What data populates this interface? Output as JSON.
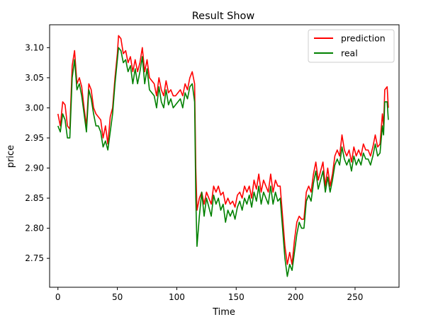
{
  "chart_data": {
    "type": "line",
    "title": "Result Show",
    "xlabel": "Time",
    "ylabel": "price",
    "xlim": [
      -7,
      287
    ],
    "ylim": [
      2.702,
      3.138
    ],
    "xticks": [
      0,
      50,
      100,
      150,
      200,
      250
    ],
    "yticks": [
      2.75,
      2.8,
      2.85,
      2.9,
      2.95,
      3.0,
      3.05,
      3.1
    ],
    "ytick_labels": [
      "2.75",
      "2.80",
      "2.85",
      "2.90",
      "2.95",
      "3.00",
      "3.05",
      "3.10"
    ],
    "grid": false,
    "legend_position": "upper-right",
    "series": [
      {
        "name": "prediction",
        "color": "#ff0000",
        "points": [
          [
            0,
            2.99
          ],
          [
            2,
            2.97
          ],
          [
            4,
            3.01
          ],
          [
            6,
            3.005
          ],
          [
            8,
            2.97
          ],
          [
            10,
            2.965
          ],
          [
            12,
            3.07
          ],
          [
            14,
            3.095
          ],
          [
            16,
            3.04
          ],
          [
            18,
            3.05
          ],
          [
            20,
            3.035
          ],
          [
            22,
            3.0
          ],
          [
            24,
            2.97
          ],
          [
            26,
            3.04
          ],
          [
            28,
            3.03
          ],
          [
            30,
            3.0
          ],
          [
            32,
            2.99
          ],
          [
            34,
            2.985
          ],
          [
            36,
            2.98
          ],
          [
            38,
            2.95
          ],
          [
            40,
            2.97
          ],
          [
            42,
            2.94
          ],
          [
            44,
            2.985
          ],
          [
            46,
            3.0
          ],
          [
            48,
            3.05
          ],
          [
            50,
            3.09
          ],
          [
            51,
            3.12
          ],
          [
            53,
            3.115
          ],
          [
            55,
            3.09
          ],
          [
            57,
            3.095
          ],
          [
            59,
            3.075
          ],
          [
            61,
            3.085
          ],
          [
            63,
            3.06
          ],
          [
            65,
            3.08
          ],
          [
            67,
            3.06
          ],
          [
            69,
            3.075
          ],
          [
            71,
            3.1
          ],
          [
            73,
            3.06
          ],
          [
            75,
            3.08
          ],
          [
            77,
            3.05
          ],
          [
            79,
            3.045
          ],
          [
            81,
            3.04
          ],
          [
            83,
            3.02
          ],
          [
            85,
            3.05
          ],
          [
            87,
            3.03
          ],
          [
            89,
            3.02
          ],
          [
            91,
            3.045
          ],
          [
            93,
            3.025
          ],
          [
            95,
            3.03
          ],
          [
            97,
            3.02
          ],
          [
            99,
            3.02
          ],
          [
            101,
            3.025
          ],
          [
            103,
            3.03
          ],
          [
            105,
            3.02
          ],
          [
            107,
            3.04
          ],
          [
            109,
            3.03
          ],
          [
            111,
            3.05
          ],
          [
            113,
            3.06
          ],
          [
            115,
            3.04
          ],
          [
            116,
            2.9
          ],
          [
            117,
            2.83
          ],
          [
            119,
            2.85
          ],
          [
            121,
            2.86
          ],
          [
            123,
            2.84
          ],
          [
            125,
            2.86
          ],
          [
            127,
            2.85
          ],
          [
            129,
            2.84
          ],
          [
            131,
            2.87
          ],
          [
            133,
            2.86
          ],
          [
            135,
            2.87
          ],
          [
            137,
            2.855
          ],
          [
            139,
            2.86
          ],
          [
            141,
            2.84
          ],
          [
            143,
            2.85
          ],
          [
            145,
            2.84
          ],
          [
            147,
            2.845
          ],
          [
            149,
            2.835
          ],
          [
            151,
            2.855
          ],
          [
            153,
            2.86
          ],
          [
            155,
            2.85
          ],
          [
            157,
            2.87
          ],
          [
            159,
            2.86
          ],
          [
            161,
            2.87
          ],
          [
            163,
            2.85
          ],
          [
            165,
            2.88
          ],
          [
            167,
            2.865
          ],
          [
            169,
            2.89
          ],
          [
            171,
            2.86
          ],
          [
            173,
            2.88
          ],
          [
            175,
            2.87
          ],
          [
            177,
            2.86
          ],
          [
            179,
            2.89
          ],
          [
            181,
            2.86
          ],
          [
            183,
            2.88
          ],
          [
            185,
            2.87
          ],
          [
            187,
            2.87
          ],
          [
            189,
            2.82
          ],
          [
            191,
            2.77
          ],
          [
            193,
            2.74
          ],
          [
            195,
            2.76
          ],
          [
            197,
            2.74
          ],
          [
            199,
            2.78
          ],
          [
            201,
            2.81
          ],
          [
            203,
            2.82
          ],
          [
            205,
            2.815
          ],
          [
            207,
            2.815
          ],
          [
            209,
            2.86
          ],
          [
            211,
            2.87
          ],
          [
            213,
            2.86
          ],
          [
            215,
            2.89
          ],
          [
            217,
            2.91
          ],
          [
            219,
            2.88
          ],
          [
            221,
            2.895
          ],
          [
            223,
            2.91
          ],
          [
            225,
            2.87
          ],
          [
            227,
            2.9
          ],
          [
            229,
            2.87
          ],
          [
            231,
            2.89
          ],
          [
            233,
            2.92
          ],
          [
            235,
            2.93
          ],
          [
            237,
            2.92
          ],
          [
            239,
            2.955
          ],
          [
            241,
            2.93
          ],
          [
            243,
            2.92
          ],
          [
            245,
            2.93
          ],
          [
            247,
            2.91
          ],
          [
            249,
            2.935
          ],
          [
            251,
            2.92
          ],
          [
            253,
            2.93
          ],
          [
            255,
            2.92
          ],
          [
            257,
            2.94
          ],
          [
            259,
            2.93
          ],
          [
            261,
            2.93
          ],
          [
            263,
            2.92
          ],
          [
            265,
            2.935
          ],
          [
            267,
            2.955
          ],
          [
            269,
            2.935
          ],
          [
            271,
            2.94
          ],
          [
            273,
            2.99
          ],
          [
            274,
            2.97
          ],
          [
            275,
            3.03
          ],
          [
            277,
            3.035
          ],
          [
            278,
            3.0
          ]
        ]
      },
      {
        "name": "real",
        "color": "#008000",
        "points": [
          [
            0,
            2.97
          ],
          [
            2,
            2.96
          ],
          [
            4,
            2.99
          ],
          [
            6,
            2.98
          ],
          [
            8,
            2.95
          ],
          [
            10,
            2.95
          ],
          [
            12,
            3.05
          ],
          [
            14,
            3.08
          ],
          [
            16,
            3.03
          ],
          [
            18,
            3.04
          ],
          [
            20,
            3.02
          ],
          [
            22,
            2.99
          ],
          [
            24,
            2.96
          ],
          [
            26,
            3.03
          ],
          [
            28,
            3.015
          ],
          [
            30,
            2.99
          ],
          [
            32,
            2.97
          ],
          [
            34,
            2.97
          ],
          [
            36,
            2.96
          ],
          [
            38,
            2.935
          ],
          [
            40,
            2.945
          ],
          [
            42,
            2.93
          ],
          [
            44,
            2.96
          ],
          [
            46,
            2.99
          ],
          [
            48,
            3.04
          ],
          [
            50,
            3.08
          ],
          [
            51,
            3.1
          ],
          [
            53,
            3.095
          ],
          [
            55,
            3.075
          ],
          [
            57,
            3.08
          ],
          [
            59,
            3.06
          ],
          [
            61,
            3.07
          ],
          [
            63,
            3.04
          ],
          [
            65,
            3.065
          ],
          [
            67,
            3.04
          ],
          [
            69,
            3.06
          ],
          [
            71,
            3.085
          ],
          [
            73,
            3.04
          ],
          [
            75,
            3.065
          ],
          [
            77,
            3.03
          ],
          [
            79,
            3.025
          ],
          [
            81,
            3.02
          ],
          [
            83,
            3.0
          ],
          [
            85,
            3.035
          ],
          [
            87,
            3.01
          ],
          [
            89,
            3.0
          ],
          [
            91,
            3.03
          ],
          [
            93,
            3.005
          ],
          [
            95,
            3.015
          ],
          [
            97,
            3.0
          ],
          [
            99,
            3.005
          ],
          [
            101,
            3.01
          ],
          [
            103,
            3.015
          ],
          [
            105,
            3.0
          ],
          [
            107,
            3.025
          ],
          [
            109,
            3.015
          ],
          [
            111,
            3.035
          ],
          [
            113,
            3.04
          ],
          [
            115,
            3.01
          ],
          [
            116,
            2.85
          ],
          [
            117,
            2.77
          ],
          [
            119,
            2.82
          ],
          [
            121,
            2.86
          ],
          [
            123,
            2.82
          ],
          [
            125,
            2.85
          ],
          [
            127,
            2.835
          ],
          [
            129,
            2.82
          ],
          [
            131,
            2.855
          ],
          [
            133,
            2.84
          ],
          [
            135,
            2.85
          ],
          [
            137,
            2.83
          ],
          [
            139,
            2.84
          ],
          [
            141,
            2.81
          ],
          [
            143,
            2.83
          ],
          [
            145,
            2.82
          ],
          [
            147,
            2.83
          ],
          [
            149,
            2.815
          ],
          [
            151,
            2.835
          ],
          [
            153,
            2.845
          ],
          [
            155,
            2.83
          ],
          [
            157,
            2.85
          ],
          [
            159,
            2.84
          ],
          [
            161,
            2.855
          ],
          [
            163,
            2.835
          ],
          [
            165,
            2.86
          ],
          [
            167,
            2.845
          ],
          [
            169,
            2.87
          ],
          [
            171,
            2.84
          ],
          [
            173,
            2.86
          ],
          [
            175,
            2.85
          ],
          [
            177,
            2.84
          ],
          [
            179,
            2.87
          ],
          [
            181,
            2.84
          ],
          [
            183,
            2.86
          ],
          [
            185,
            2.845
          ],
          [
            187,
            2.85
          ],
          [
            189,
            2.8
          ],
          [
            191,
            2.75
          ],
          [
            193,
            2.72
          ],
          [
            195,
            2.74
          ],
          [
            197,
            2.73
          ],
          [
            199,
            2.76
          ],
          [
            201,
            2.79
          ],
          [
            203,
            2.81
          ],
          [
            205,
            2.8
          ],
          [
            207,
            2.8
          ],
          [
            209,
            2.845
          ],
          [
            211,
            2.855
          ],
          [
            213,
            2.845
          ],
          [
            215,
            2.875
          ],
          [
            217,
            2.895
          ],
          [
            219,
            2.865
          ],
          [
            221,
            2.88
          ],
          [
            223,
            2.895
          ],
          [
            225,
            2.86
          ],
          [
            227,
            2.885
          ],
          [
            229,
            2.86
          ],
          [
            231,
            2.88
          ],
          [
            233,
            2.905
          ],
          [
            235,
            2.915
          ],
          [
            237,
            2.905
          ],
          [
            239,
            2.935
          ],
          [
            241,
            2.915
          ],
          [
            243,
            2.905
          ],
          [
            245,
            2.915
          ],
          [
            247,
            2.895
          ],
          [
            249,
            2.92
          ],
          [
            251,
            2.905
          ],
          [
            253,
            2.915
          ],
          [
            255,
            2.905
          ],
          [
            257,
            2.925
          ],
          [
            259,
            2.915
          ],
          [
            261,
            2.915
          ],
          [
            263,
            2.905
          ],
          [
            265,
            2.92
          ],
          [
            267,
            2.94
          ],
          [
            269,
            2.92
          ],
          [
            271,
            2.925
          ],
          [
            273,
            2.97
          ],
          [
            274,
            2.955
          ],
          [
            275,
            3.01
          ],
          [
            277,
            3.01
          ],
          [
            278,
            2.98
          ]
        ]
      }
    ]
  }
}
